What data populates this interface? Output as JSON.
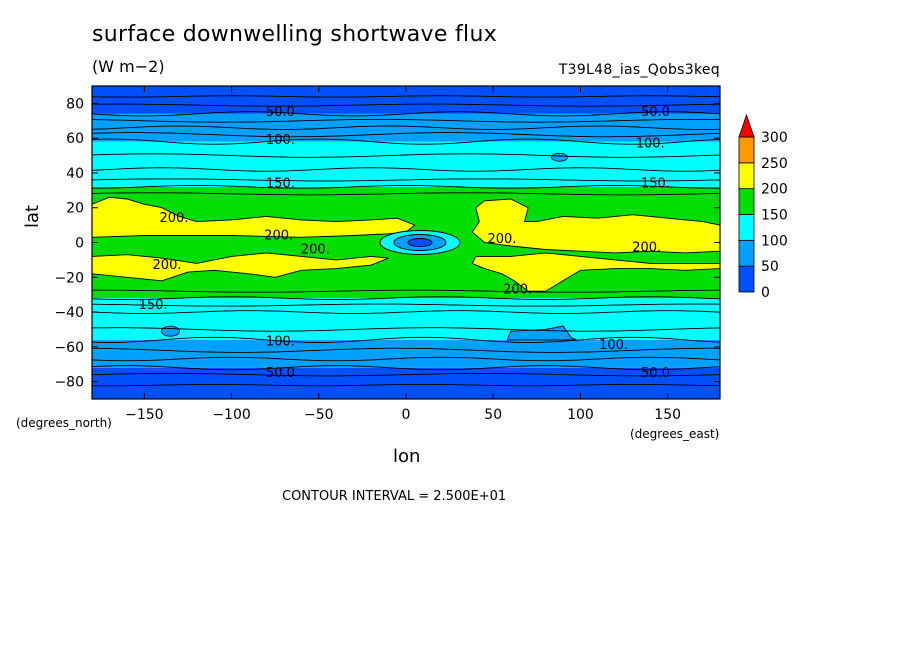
{
  "chart_data": {
    "type": "heatmap",
    "title": "surface downwelling shortwave flux",
    "units": "(W m−2)",
    "run_label": "T39L48_ias_Qobs3keq",
    "xlabel": "lon",
    "ylabel": "lat",
    "x_unit_label": "(degrees_east)",
    "y_unit_label": "(degrees_north)",
    "xlim": [
      -180,
      180
    ],
    "ylim": [
      -90,
      90
    ],
    "x_ticks": [
      -150,
      -100,
      -50,
      0,
      50,
      100,
      150
    ],
    "y_ticks": [
      -80,
      -60,
      -40,
      -20,
      0,
      20,
      40,
      60,
      80
    ],
    "contour_interval_text": "CONTOUR INTERVAL = 2.500E+01",
    "colorbar": {
      "levels": [
        0,
        50,
        100,
        150,
        200,
        250,
        300
      ],
      "colors": [
        "#0050ff",
        "#00a0ff",
        "#00ffff",
        "#00dd00",
        "#ffff00",
        "#ff9900"
      ],
      "overflow_color": "#ff0000"
    },
    "zonal_bands": [
      {
        "lat_min": -90,
        "lat_max": -72,
        "value_range": [
          0,
          50
        ]
      },
      {
        "lat_min": -72,
        "lat_max": -56,
        "value_range": [
          50,
          100
        ]
      },
      {
        "lat_min": -56,
        "lat_max": -32,
        "value_range": [
          100,
          150
        ]
      },
      {
        "lat_min": -32,
        "lat_max": 32,
        "value_range": [
          150,
          200
        ]
      },
      {
        "lat_min": 32,
        "lat_max": 58,
        "value_range": [
          100,
          150
        ]
      },
      {
        "lat_min": 58,
        "lat_max": 74,
        "value_range": [
          50,
          100
        ]
      },
      {
        "lat_min": 74,
        "lat_max": 90,
        "value_range": [
          0,
          50
        ]
      }
    ],
    "contour_labels": [
      {
        "text": "50.0",
        "lon": -72,
        "lat": 75
      },
      {
        "text": "50.0",
        "lon": 143,
        "lat": 75
      },
      {
        "text": "100.",
        "lon": -72,
        "lat": 59
      },
      {
        "text": "100.",
        "lon": 140,
        "lat": 57
      },
      {
        "text": "150.",
        "lon": -72,
        "lat": 34
      },
      {
        "text": "150.",
        "lon": 143,
        "lat": 34
      },
      {
        "text": "200.",
        "lon": -133,
        "lat": 14
      },
      {
        "text": "200.",
        "lon": -73,
        "lat": 4
      },
      {
        "text": "200.",
        "lon": -52,
        "lat": -4
      },
      {
        "text": "200.",
        "lon": 55,
        "lat": 2
      },
      {
        "text": "200.",
        "lon": 138,
        "lat": -3
      },
      {
        "text": "200.",
        "lon": -137,
        "lat": -13
      },
      {
        "text": "200.",
        "lon": 64,
        "lat": -27
      },
      {
        "text": "150.",
        "lon": -145,
        "lat": -36
      },
      {
        "text": "100.",
        "lon": -72,
        "lat": -57
      },
      {
        "text": "100.",
        "lon": 119,
        "lat": -59
      },
      {
        "text": "50.0",
        "lon": -72,
        "lat": -75
      },
      {
        "text": "50.0",
        "lon": 143,
        "lat": -75
      }
    ]
  }
}
